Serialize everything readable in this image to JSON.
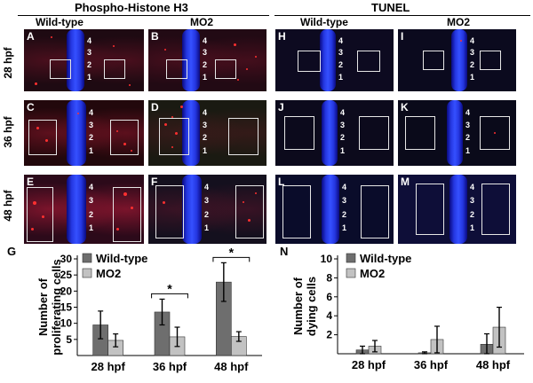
{
  "headers": {
    "phh3": "Phospho-Histone H3",
    "tunel": "TUNEL"
  },
  "subheaders": [
    "Wild-type",
    "MO2",
    "Wild-type",
    "MO2"
  ],
  "row_labels": [
    "28 hpf",
    "36 hpf",
    "48 hpf"
  ],
  "panel_letters": [
    "A",
    "B",
    "H",
    "I",
    "C",
    "D",
    "J",
    "K",
    "E",
    "F",
    "L",
    "M"
  ],
  "segment_numbers": [
    "4",
    "3",
    "2",
    "1"
  ],
  "colors": {
    "wt_bar": "#6e6e6e",
    "mo_bar": "#c2c2c2",
    "stain_red": "#ff3030",
    "nucleus_blue": "#3550ff"
  },
  "chart_data": [
    {
      "type": "bar",
      "panel_label": "G",
      "ylabel": "Number of proliferating cells",
      "categories": [
        "28 hpf",
        "36 hpf",
        "48 hpf"
      ],
      "series": [
        {
          "name": "Wild-type",
          "values": [
            9.5,
            13.5,
            22.8
          ],
          "errors": [
            4.3,
            4.0,
            6.0
          ]
        },
        {
          "name": "MO2",
          "values": [
            4.7,
            5.8,
            5.9
          ],
          "errors": [
            2.0,
            3.0,
            1.5
          ]
        }
      ],
      "ylim": [
        0,
        30
      ],
      "yticks": [
        5,
        10,
        15,
        20,
        25,
        30
      ],
      "significance": [
        "",
        "*",
        "*"
      ],
      "legend": "top-left"
    },
    {
      "type": "bar",
      "panel_label": "N",
      "ylabel": "Number of dying cells",
      "categories": [
        "28 hpf",
        "36 hpf",
        "48 hpf"
      ],
      "series": [
        {
          "name": "Wild-type",
          "values": [
            0.4,
            0.1,
            1.0
          ],
          "errors": [
            0.4,
            0.1,
            1.1
          ]
        },
        {
          "name": "MO2",
          "values": [
            0.8,
            1.5,
            2.8
          ],
          "errors": [
            0.6,
            1.4,
            2.1
          ]
        }
      ],
      "ylim": [
        0,
        10
      ],
      "yticks": [
        2,
        4,
        6,
        8,
        10
      ],
      "significance": [
        "",
        "",
        ""
      ],
      "legend": "top-left"
    }
  ]
}
